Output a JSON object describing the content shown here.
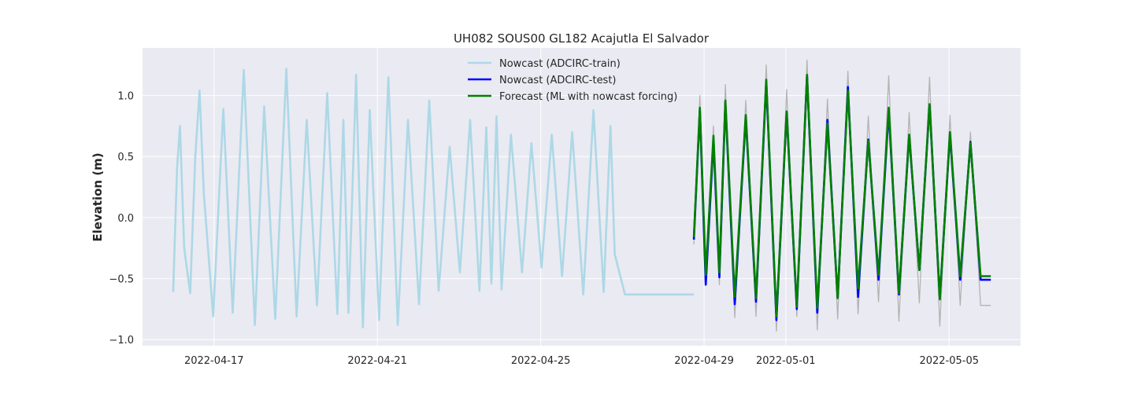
{
  "chart_data": {
    "type": "line",
    "title": "UH082 SOUS00 GL182 Acajutla El Salvador",
    "xlabel": "",
    "ylabel": "Elevation (m)",
    "xlim": [
      "2022-04-15T06:00",
      "2022-05-06T18:00"
    ],
    "ylim": [
      -1.05,
      1.39
    ],
    "y_ticks": [
      -1.0,
      -0.5,
      0.0,
      0.5,
      1.0
    ],
    "y_tick_labels": [
      "−1.0",
      "−0.5",
      "0.0",
      "0.5",
      "1.0"
    ],
    "x_ticks": [
      "2022-04-17",
      "2022-04-21",
      "2022-04-25",
      "2022-04-29",
      "2022-05-01",
      "2022-05-05"
    ],
    "grid": true,
    "legend_position": "top-center",
    "colors": {
      "background": "#eaeaf2",
      "grid": "#ffffff",
      "train": "#add8e6",
      "test": "#0000ff",
      "forecast": "#008000",
      "observed": "#b3b3b3"
    },
    "series": [
      {
        "name": "Nowcast (ADCIRC-train)",
        "color": "#add8e6",
        "x": [
          "2022-04-16T00:00",
          "2022-04-16T02:15",
          "2022-04-16T04:00",
          "2022-04-16T06:30",
          "2022-04-16T10:00",
          "2022-04-16T13:00",
          "2022-04-16T15:30",
          "2022-04-16T18:00",
          "2022-04-16T23:30",
          "2022-04-17T05:30",
          "2022-04-17T11:00",
          "2022-04-17T17:30",
          "2022-04-18T00:00",
          "2022-04-18T05:30",
          "2022-04-18T12:00",
          "2022-04-18T18:30",
          "2022-04-19T00:30",
          "2022-04-19T06:30",
          "2022-04-19T12:30",
          "2022-04-19T18:30",
          "2022-04-20T00:30",
          "2022-04-20T04:00",
          "2022-04-20T07:00",
          "2022-04-20T11:30",
          "2022-04-20T15:30",
          "2022-04-20T19:30",
          "2022-04-21T01:00",
          "2022-04-21T06:30",
          "2022-04-21T12:00",
          "2022-04-21T18:00",
          "2022-04-22T00:30",
          "2022-04-22T06:30",
          "2022-04-22T12:00",
          "2022-04-22T18:30",
          "2022-04-23T00:30",
          "2022-04-23T06:30",
          "2022-04-23T12:00",
          "2022-04-23T16:00",
          "2022-04-23T19:00",
          "2022-04-23T22:00",
          "2022-04-24T01:00",
          "2022-04-24T06:30",
          "2022-04-24T13:00",
          "2022-04-24T18:30",
          "2022-04-25T00:30",
          "2022-04-25T06:30",
          "2022-04-25T12:30",
          "2022-04-25T18:30",
          "2022-04-26T01:00",
          "2022-04-26T07:00",
          "2022-04-26T13:00",
          "2022-04-26T17:00",
          "2022-04-26T19:30",
          "2022-04-27T01:30",
          "2022-04-27T07:30",
          "2022-04-27T13:00",
          "2022-04-27T18:30",
          "2022-04-28T00:30",
          "2022-04-28T06:30",
          "2022-04-28T12:30",
          "2022-04-28T18:00"
        ],
        "y": [
          -0.61,
          0.4,
          0.75,
          -0.25,
          -0.62,
          0.5,
          1.04,
          0.2,
          -0.81,
          0.89,
          -0.78,
          1.21,
          -0.88,
          0.91,
          -0.83,
          1.22,
          -0.81,
          0.8,
          -0.72,
          1.02,
          -0.79,
          0.8,
          -0.78,
          1.17,
          -0.9,
          0.88,
          -0.84,
          1.15,
          -0.88,
          0.8,
          -0.71,
          0.96,
          -0.6,
          0.58,
          -0.45,
          0.8,
          -0.6,
          0.74,
          -0.54,
          0.83,
          -0.59,
          0.68,
          -0.45,
          0.61,
          -0.41,
          0.68,
          -0.48,
          0.7,
          -0.63,
          0.88,
          -0.61,
          0.75,
          -0.3,
          -0.63,
          -0.63,
          -0.63,
          -0.63,
          -0.63,
          -0.63,
          -0.63,
          -0.63
        ]
      },
      {
        "name": "Nowcast (ADCIRC-test)",
        "color": "#0000ff",
        "x": [
          "2022-04-28T18:00",
          "2022-04-28T21:30",
          "2022-04-29T01:00",
          "2022-04-29T05:30",
          "2022-04-29T09:00",
          "2022-04-29T12:30",
          "2022-04-29T18:00",
          "2022-04-30T00:30",
          "2022-04-30T06:30",
          "2022-04-30T12:30",
          "2022-04-30T18:30",
          "2022-05-01T00:30",
          "2022-05-01T06:30",
          "2022-05-01T12:30",
          "2022-05-01T18:30",
          "2022-05-02T00:30",
          "2022-05-02T06:30",
          "2022-05-02T12:30",
          "2022-05-02T18:30",
          "2022-05-03T00:30",
          "2022-05-03T06:30",
          "2022-05-03T12:30",
          "2022-05-03T18:30",
          "2022-05-04T00:30",
          "2022-05-04T06:30",
          "2022-05-04T12:30",
          "2022-05-04T18:30",
          "2022-05-05T00:30",
          "2022-05-05T06:30",
          "2022-05-05T12:30",
          "2022-05-05T18:30",
          "2022-05-06T00:30"
        ],
        "y": [
          -0.18,
          0.88,
          -0.55,
          0.63,
          -0.49,
          0.94,
          -0.71,
          0.82,
          -0.69,
          1.11,
          -0.84,
          0.86,
          -0.75,
          1.16,
          -0.78,
          0.8,
          -0.66,
          1.07,
          -0.65,
          0.64,
          -0.51,
          0.87,
          -0.63,
          0.67,
          -0.43,
          0.92,
          -0.66,
          0.68,
          -0.51,
          0.62,
          -0.51,
          -0.51
        ]
      },
      {
        "name": "Forecast (ML with nowcast forcing)",
        "color": "#008000",
        "x": [
          "2022-04-28T18:00",
          "2022-04-28T21:30",
          "2022-04-29T01:00",
          "2022-04-29T05:30",
          "2022-04-29T09:00",
          "2022-04-29T12:30",
          "2022-04-29T18:00",
          "2022-04-30T00:30",
          "2022-04-30T06:30",
          "2022-04-30T12:30",
          "2022-04-30T18:30",
          "2022-05-01T00:30",
          "2022-05-01T06:30",
          "2022-05-01T12:30",
          "2022-05-01T18:30",
          "2022-05-02T00:30",
          "2022-05-02T06:30",
          "2022-05-02T12:30",
          "2022-05-02T18:30",
          "2022-05-03T00:30",
          "2022-05-03T06:30",
          "2022-05-03T12:30",
          "2022-05-03T18:30",
          "2022-05-04T00:30",
          "2022-05-04T06:30",
          "2022-05-04T12:30",
          "2022-05-04T18:30",
          "2022-05-05T00:30",
          "2022-05-05T06:30",
          "2022-05-05T12:30",
          "2022-05-05T18:30",
          "2022-05-06T00:30"
        ],
        "y": [
          -0.16,
          0.9,
          -0.47,
          0.67,
          -0.45,
          0.96,
          -0.65,
          0.84,
          -0.66,
          1.13,
          -0.81,
          0.87,
          -0.73,
          1.17,
          -0.74,
          0.77,
          -0.66,
          1.04,
          -0.58,
          0.63,
          -0.47,
          0.9,
          -0.62,
          0.68,
          -0.43,
          0.93,
          -0.67,
          0.7,
          -0.48,
          0.61,
          -0.48,
          -0.48
        ]
      },
      {
        "color": "#b3b3b3",
        "x": [
          "2022-04-28T18:00",
          "2022-04-28T21:30",
          "2022-04-29T01:00",
          "2022-04-29T05:30",
          "2022-04-29T09:00",
          "2022-04-29T12:30",
          "2022-04-29T18:00",
          "2022-04-30T00:30",
          "2022-04-30T06:30",
          "2022-04-30T12:30",
          "2022-04-30T18:30",
          "2022-05-01T00:30",
          "2022-05-01T06:30",
          "2022-05-01T12:30",
          "2022-05-01T18:30",
          "2022-05-02T00:30",
          "2022-05-02T06:30",
          "2022-05-02T12:30",
          "2022-05-02T18:30",
          "2022-05-03T00:30",
          "2022-05-03T06:30",
          "2022-05-03T12:30",
          "2022-05-03T18:30",
          "2022-05-04T00:30",
          "2022-05-04T06:30",
          "2022-05-04T12:30",
          "2022-05-04T18:30",
          "2022-05-05T00:30",
          "2022-05-05T06:30",
          "2022-05-05T12:30",
          "2022-05-05T18:30",
          "2022-05-06T00:30"
        ],
        "y": [
          -0.22,
          1.0,
          -0.38,
          0.75,
          -0.55,
          1.09,
          -0.82,
          0.96,
          -0.81,
          1.25,
          -0.93,
          1.05,
          -0.81,
          1.29,
          -0.92,
          0.97,
          -0.83,
          1.2,
          -0.79,
          0.83,
          -0.69,
          1.16,
          -0.85,
          0.86,
          -0.7,
          1.15,
          -0.89,
          0.84,
          -0.72,
          0.7,
          -0.72,
          -0.72
        ]
      }
    ]
  }
}
